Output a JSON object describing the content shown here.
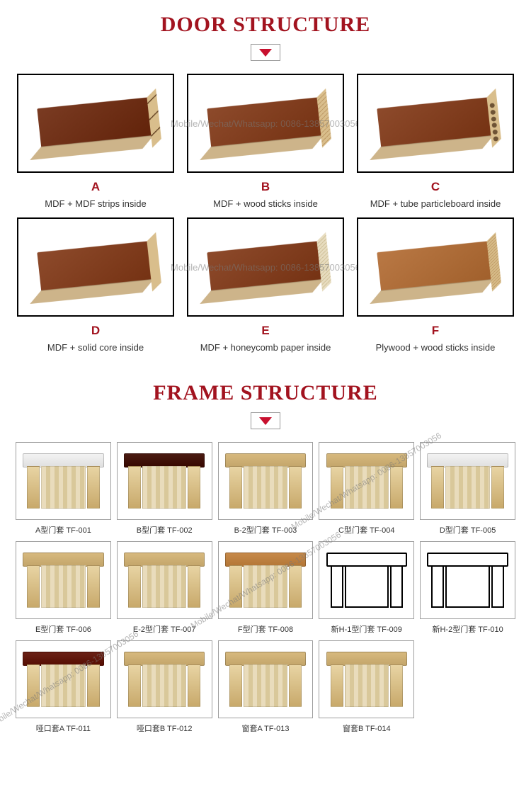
{
  "colors": {
    "title": "#a2131f",
    "letter": "#a2131f",
    "arrow": "#c8102e",
    "wood_top_dark": "#7a3b22",
    "wood_top_mid": "#8d4a2b",
    "wood_top_light": "#b97844",
    "white_cap": "#f3f3f3",
    "dark_cap": "#4a1b12"
  },
  "watermark": "Mobile/Wechat/Whatsapp: 0086-13857003056",
  "sections": {
    "door": {
      "title": "DOOR STRUCTURE"
    },
    "frame": {
      "title": "FRAME STRUCTURE"
    }
  },
  "door_items": [
    {
      "letter": "A",
      "desc": "MDF + MDF strips inside",
      "top_color": "#7a3b22",
      "pattern": "pattern-strips"
    },
    {
      "letter": "B",
      "desc": "MDF + wood sticks inside",
      "top_color": "#8d4a2b",
      "pattern": "pattern-sticks"
    },
    {
      "letter": "C",
      "desc": "MDF + tube particleboard inside",
      "top_color": "#8d4a2b",
      "pattern": "pattern-tube"
    },
    {
      "letter": "D",
      "desc": "MDF + solid core inside",
      "top_color": "#8d4a2b",
      "pattern": "pattern-solid"
    },
    {
      "letter": "E",
      "desc": "MDF + honeycomb paper inside",
      "top_color": "#8d4a2b",
      "pattern": "pattern-honey"
    },
    {
      "letter": "F",
      "desc": "Plywood + wood sticks inside",
      "top_color": "#b97844",
      "pattern": "pattern-ply"
    }
  ],
  "frame_items": [
    {
      "label": "A型门套  TF-001",
      "cap_color": "#f3f3f3",
      "outline": false
    },
    {
      "label": "B型门套  TF-002",
      "cap_color": "#4a1b12",
      "outline": false
    },
    {
      "label": "B-2型门套  TF-003",
      "cap_color": "#d7b97e",
      "outline": false
    },
    {
      "label": "C型门套  TF-004",
      "cap_color": "#d7b97e",
      "outline": false
    },
    {
      "label": "D型门套  TF-005",
      "cap_color": "#f3f3f3",
      "outline": false
    },
    {
      "label": "E型门套  TF-006",
      "cap_color": "#d7b97e",
      "outline": false
    },
    {
      "label": "E-2型门套  TF-007",
      "cap_color": "#d7b97e",
      "outline": false
    },
    {
      "label": "F型门套  TF-008",
      "cap_color": "#c78a4a",
      "outline": false
    },
    {
      "label": "新H-1型门套  TF-009",
      "cap_color": "#ffffff",
      "outline": true
    },
    {
      "label": "新H-2型门套  TF-010",
      "cap_color": "#ffffff",
      "outline": true
    },
    {
      "label": "哑口套A  TF-011",
      "cap_color": "#6a2116",
      "outline": false
    },
    {
      "label": "哑口套B  TF-012",
      "cap_color": "#d7b97e",
      "outline": false
    },
    {
      "label": "窗套A  TF-013",
      "cap_color": "#d7b97e",
      "outline": false
    },
    {
      "label": "窗套B  TF-014",
      "cap_color": "#d7b97e",
      "outline": false
    }
  ]
}
